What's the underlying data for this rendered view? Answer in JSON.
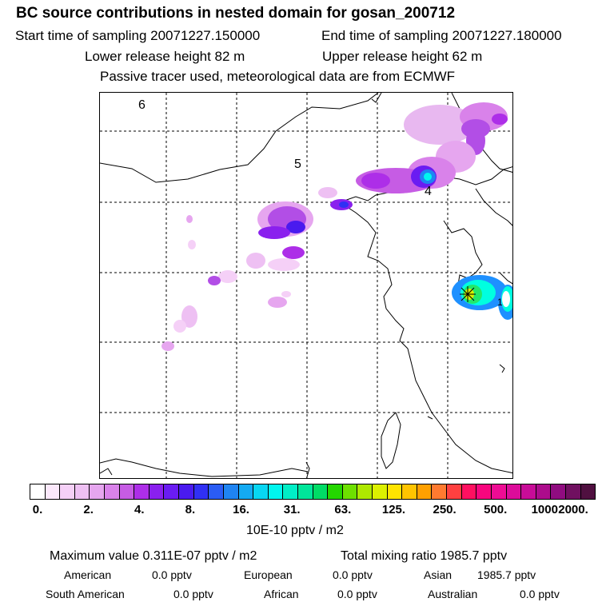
{
  "header": {
    "title": "BC  source contributions in nested domain for gosan_200712",
    "start_label": "Start time of sampling 20071227.150000",
    "end_label": "End time of sampling 20071227.180000",
    "lower_label": "Lower release height   82 m",
    "upper_label": "Upper release height   62 m",
    "note": "Passive tracer used, meteorological data are from ECMWF"
  },
  "map": {
    "region_labels": [
      "6",
      "5",
      "4",
      "1"
    ],
    "plume_color_low": "#e8b8f0",
    "plume_color_mid": "#b24ee6",
    "plume_color_high": "#5b3cf0",
    "hotspot_colors": [
      "#1e90ff",
      "#00ffe0",
      "#22e86a",
      "#d8f000"
    ]
  },
  "legend": {
    "colors": [
      "#ffffff",
      "#fbe8fb",
      "#f5d0f7",
      "#eec0f3",
      "#e6a6ef",
      "#d982ea",
      "#c65ce4",
      "#ad2ee8",
      "#8a20ee",
      "#6a1cf2",
      "#4a1aef",
      "#3030f4",
      "#2a5cf4",
      "#1f84f2",
      "#14aaf2",
      "#08d6f2",
      "#00f6ee",
      "#00eec6",
      "#00e69a",
      "#00dc66",
      "#24d600",
      "#6ee000",
      "#aee800",
      "#dcf000",
      "#ffe400",
      "#ffc400",
      "#ffa000",
      "#ff7a30",
      "#ff4040",
      "#ff1060",
      "#f8067e",
      "#ee0c94",
      "#dc0c9a",
      "#c80c98",
      "#ac0c8c",
      "#900c80",
      "#701060",
      "#501040"
    ],
    "labels": [
      "0.",
      "2.",
      "4.",
      "8.",
      "16.",
      "31.",
      "63.",
      "125.",
      "250.",
      "500.",
      "1000.",
      "2000."
    ],
    "units": "10E-10 pptv / m2"
  },
  "stats": {
    "max_value": "Maximum value  0.311E-07 pptv / m2",
    "total_mixing": "Total mixing ratio     1985.7 pptv",
    "american_label": "American",
    "american_value": "0.0 pptv",
    "european_label": "European",
    "european_value": "0.0 pptv",
    "asian_label": "Asian",
    "asian_value": "1985.7 pptv",
    "south_american_label": "South American",
    "south_american_value": "0.0 pptv",
    "african_label": "African",
    "african_value": "0.0 pptv",
    "australian_label": "Australian",
    "australian_value": "0.0 pptv"
  }
}
